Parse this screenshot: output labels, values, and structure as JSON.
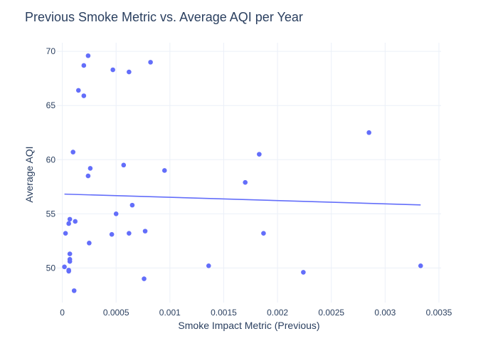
{
  "chart_data": {
    "type": "scatter",
    "title": "Previous Smoke Metric vs. Average AQI per Year",
    "xlabel": "Smoke Impact Metric (Previous)",
    "ylabel": "Average AQI",
    "xlim": [
      -5e-05,
      0.00352
    ],
    "ylim": [
      46.8,
      70.8
    ],
    "grid": true,
    "legend": "none",
    "colors": {
      "point": "#636efa",
      "trendline": "#636efa",
      "grid": "#ebf0f8",
      "text": "#2a3f5f"
    },
    "x_ticks": [
      {
        "value": 0,
        "label": "0"
      },
      {
        "value": 0.0005,
        "label": "0.0005"
      },
      {
        "value": 0.001,
        "label": "0.001"
      },
      {
        "value": 0.0015,
        "label": "0.0015"
      },
      {
        "value": 0.002,
        "label": "0.002"
      },
      {
        "value": 0.0025,
        "label": "0.0025"
      },
      {
        "value": 0.003,
        "label": "0.003"
      },
      {
        "value": 0.0035,
        "label": "0.0035"
      }
    ],
    "y_ticks": [
      {
        "value": 50,
        "label": "50"
      },
      {
        "value": 55,
        "label": "55"
      },
      {
        "value": 60,
        "label": "60"
      },
      {
        "value": 65,
        "label": "65"
      },
      {
        "value": 70,
        "label": "70"
      }
    ],
    "points": [
      {
        "x": 0.00024,
        "y": 69.6
      },
      {
        "x": 0.0002,
        "y": 68.7
      },
      {
        "x": 0.00047,
        "y": 68.3
      },
      {
        "x": 0.00062,
        "y": 68.1
      },
      {
        "x": 0.00082,
        "y": 69.0
      },
      {
        "x": 0.00015,
        "y": 66.4
      },
      {
        "x": 0.0002,
        "y": 65.9
      },
      {
        "x": 0.0001,
        "y": 60.7
      },
      {
        "x": 0.00057,
        "y": 59.5
      },
      {
        "x": 0.00026,
        "y": 59.2
      },
      {
        "x": 0.00095,
        "y": 59.0
      },
      {
        "x": 0.00024,
        "y": 58.5
      },
      {
        "x": 0.00065,
        "y": 55.8
      },
      {
        "x": 0.0005,
        "y": 55.0
      },
      {
        "x": 7e-05,
        "y": 54.5
      },
      {
        "x": 0.00012,
        "y": 54.3
      },
      {
        "x": 6e-05,
        "y": 54.1
      },
      {
        "x": 3e-05,
        "y": 53.2
      },
      {
        "x": 0.00046,
        "y": 53.1
      },
      {
        "x": 0.00062,
        "y": 53.2
      },
      {
        "x": 0.00077,
        "y": 53.4
      },
      {
        "x": 0.00025,
        "y": 52.3
      },
      {
        "x": 7e-05,
        "y": 51.3
      },
      {
        "x": 7e-05,
        "y": 50.8
      },
      {
        "x": 7e-05,
        "y": 50.6
      },
      {
        "x": 2e-05,
        "y": 50.1
      },
      {
        "x": 6e-05,
        "y": 49.8
      },
      {
        "x": 6e-05,
        "y": 49.7
      },
      {
        "x": 0.00011,
        "y": 47.9
      },
      {
        "x": 0.00076,
        "y": 49.0
      },
      {
        "x": 0.00136,
        "y": 50.2
      },
      {
        "x": 0.0017,
        "y": 57.9
      },
      {
        "x": 0.00183,
        "y": 60.5
      },
      {
        "x": 0.00187,
        "y": 53.2
      },
      {
        "x": 0.00224,
        "y": 49.6
      },
      {
        "x": 0.00285,
        "y": 62.5
      },
      {
        "x": 0.00333,
        "y": 50.2
      }
    ],
    "trendline": [
      {
        "x": 2e-05,
        "y": 56.82
      },
      {
        "x": 0.00333,
        "y": 55.82
      }
    ]
  }
}
